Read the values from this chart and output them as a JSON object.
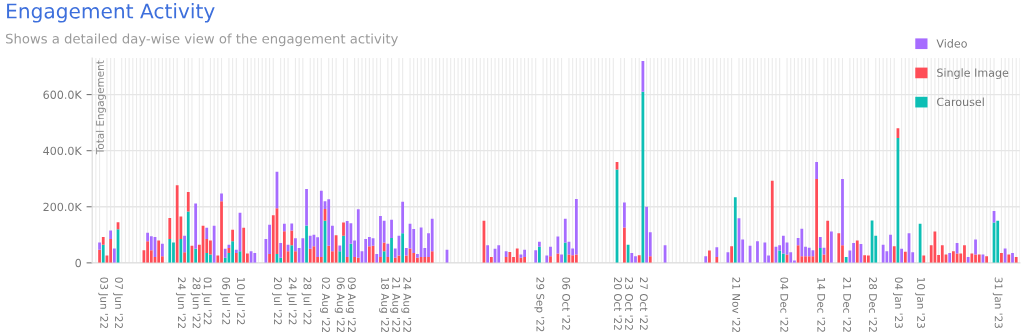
{
  "chart_data": {
    "type": "bar",
    "stacked": true,
    "title": "Engagement Activity",
    "subtitle": "Shows a detailed day-wise view of the engagement activity",
    "ylabel": "Total Engagement",
    "xlim": [
      "2022-05-31",
      "2023-02-06"
    ],
    "ylim": [
      0,
      730000
    ],
    "yticks": [
      0,
      {
        "value": 200000,
        "label": "200.0K"
      },
      {
        "value": 400000,
        "label": "400.0K"
      },
      {
        "value": 600000,
        "label": "600.0K"
      }
    ],
    "xticks": [
      {
        "value": "2022-06-03",
        "label": "03 Jun '22"
      },
      {
        "value": "2022-06-07",
        "label": "07 Jun '22"
      },
      {
        "value": "2022-06-24",
        "label": "24 Jun '22"
      },
      {
        "value": "2022-06-28",
        "label": "28 Jun '22"
      },
      {
        "value": "2022-07-01",
        "label": "01 Jul '22"
      },
      {
        "value": "2022-07-06",
        "label": "06 Jul '22"
      },
      {
        "value": "2022-07-10",
        "label": "10 Jul '22"
      },
      {
        "value": "2022-07-20",
        "label": "20 Jul '22"
      },
      {
        "value": "2022-07-24",
        "label": "24 Jul '22"
      },
      {
        "value": "2022-07-28",
        "label": "28 Jul '22"
      },
      {
        "value": "2022-08-02",
        "label": "02 Aug '22"
      },
      {
        "value": "2022-08-06",
        "label": "06 Aug '22"
      },
      {
        "value": "2022-08-09",
        "label": "09 Aug '22"
      },
      {
        "value": "2022-08-18",
        "label": "18 Aug '22"
      },
      {
        "value": "2022-08-21",
        "label": "21 Aug '22"
      },
      {
        "value": "2022-08-24",
        "label": "24 Aug '22"
      },
      {
        "value": "2022-09-29",
        "label": "29 Sep '22"
      },
      {
        "value": "2022-10-06",
        "label": "06 Oct '22"
      },
      {
        "value": "2022-10-20",
        "label": "20 Oct '22"
      },
      {
        "value": "2022-10-23",
        "label": "23 Oct '22"
      },
      {
        "value": "2022-10-27",
        "label": "27 Oct '22"
      },
      {
        "value": "2022-11-21",
        "label": "21 Nov '22"
      },
      {
        "value": "2022-12-04",
        "label": "04 Dec '22"
      },
      {
        "value": "2022-12-14",
        "label": "14 Dec '22"
      },
      {
        "value": "2022-12-21",
        "label": "21 Dec '22"
      },
      {
        "value": "2022-12-28",
        "label": "28 Dec '22"
      },
      {
        "value": "2023-01-04",
        "label": "04 Jan '23"
      },
      {
        "value": "2023-01-10",
        "label": "10 Jan '23"
      },
      {
        "value": "2023-01-31",
        "label": "31 Jan '23"
      }
    ],
    "grid": true,
    "legend": "top right",
    "x": [
      "2022-06-02",
      "2022-06-03",
      "2022-06-04",
      "2022-06-05",
      "2022-06-06",
      "2022-06-07",
      "2022-06-14",
      "2022-06-15",
      "2022-06-16",
      "2022-06-17",
      "2022-06-18",
      "2022-06-19",
      "2022-06-21",
      "2022-06-22",
      "2022-06-23",
      "2022-06-24",
      "2022-06-25",
      "2022-06-26",
      "2022-06-27",
      "2022-06-28",
      "2022-06-29",
      "2022-06-30",
      "2022-07-01",
      "2022-07-02",
      "2022-07-03",
      "2022-07-04",
      "2022-07-05",
      "2022-07-06",
      "2022-07-07",
      "2022-07-08",
      "2022-07-09",
      "2022-07-10",
      "2022-07-11",
      "2022-07-12",
      "2022-07-13",
      "2022-07-14",
      "2022-07-17",
      "2022-07-18",
      "2022-07-19",
      "2022-07-20",
      "2022-07-21",
      "2022-07-22",
      "2022-07-23",
      "2022-07-24",
      "2022-07-25",
      "2022-07-26",
      "2022-07-27",
      "2022-07-28",
      "2022-07-29",
      "2022-07-30",
      "2022-07-31",
      "2022-08-01",
      "2022-08-02",
      "2022-08-03",
      "2022-08-04",
      "2022-08-05",
      "2022-08-06",
      "2022-08-07",
      "2022-08-08",
      "2022-08-09",
      "2022-08-10",
      "2022-08-11",
      "2022-08-12",
      "2022-08-13",
      "2022-08-14",
      "2022-08-15",
      "2022-08-16",
      "2022-08-17",
      "2022-08-18",
      "2022-08-19",
      "2022-08-20",
      "2022-08-21",
      "2022-08-22",
      "2022-08-23",
      "2022-08-24",
      "2022-08-25",
      "2022-08-26",
      "2022-08-27",
      "2022-08-28",
      "2022-08-29",
      "2022-08-30",
      "2022-08-31",
      "2022-09-04",
      "2022-09-14",
      "2022-09-15",
      "2022-09-16",
      "2022-09-17",
      "2022-09-18",
      "2022-09-20",
      "2022-09-21",
      "2022-09-22",
      "2022-09-23",
      "2022-09-24",
      "2022-09-25",
      "2022-09-28",
      "2022-09-29",
      "2022-10-01",
      "2022-10-02",
      "2022-10-04",
      "2022-10-05",
      "2022-10-06",
      "2022-10-07",
      "2022-10-08",
      "2022-10-09",
      "2022-10-20",
      "2022-10-22",
      "2022-10-23",
      "2022-10-24",
      "2022-10-25",
      "2022-10-26",
      "2022-10-27",
      "2022-10-28",
      "2022-10-29",
      "2022-11-02",
      "2022-11-13",
      "2022-11-14",
      "2022-11-16",
      "2022-11-19",
      "2022-11-20",
      "2022-11-21",
      "2022-11-22",
      "2022-11-23",
      "2022-11-25",
      "2022-11-27",
      "2022-11-29",
      "2022-11-30",
      "2022-12-01",
      "2022-12-02",
      "2022-12-03",
      "2022-12-04",
      "2022-12-05",
      "2022-12-06",
      "2022-12-07",
      "2022-12-08",
      "2022-12-09",
      "2022-12-10",
      "2022-12-11",
      "2022-12-12",
      "2022-12-13",
      "2022-12-14",
      "2022-12-15",
      "2022-12-16",
      "2022-12-17",
      "2022-12-19",
      "2022-12-20",
      "2022-12-21",
      "2022-12-22",
      "2022-12-23",
      "2022-12-24",
      "2022-12-25",
      "2022-12-26",
      "2022-12-27",
      "2022-12-28",
      "2022-12-29",
      "2022-12-31",
      "2023-01-01",
      "2023-01-02",
      "2023-01-03",
      "2023-01-04",
      "2023-01-05",
      "2023-01-06",
      "2023-01-07",
      "2023-01-08",
      "2023-01-10",
      "2023-01-11",
      "2023-01-13",
      "2023-01-14",
      "2023-01-15",
      "2023-01-16",
      "2023-01-17",
      "2023-01-18",
      "2023-01-19",
      "2023-01-20",
      "2023-01-21",
      "2023-01-22",
      "2023-01-23",
      "2023-01-24",
      "2023-01-25",
      "2023-01-26",
      "2023-01-27",
      "2023-01-28",
      "2023-01-30",
      "2023-01-31",
      "2023-02-01",
      "2023-02-02",
      "2023-02-03",
      "2023-02-04",
      "2023-02-05"
    ],
    "series": [
      {
        "name": "Carousel",
        "color": "#0dbfb5",
        "values": [
          null,
          65000,
          null,
          null,
          null,
          120000,
          null,
          null,
          null,
          null,
          null,
          null,
          85000,
          73000,
          null,
          85000,
          null,
          183000,
          null,
          50000,
          null,
          null,
          35000,
          30000,
          null,
          null,
          null,
          18000,
          35000,
          77000,
          null,
          41000,
          null,
          null,
          null,
          null,
          null,
          null,
          null,
          32000,
          18000,
          null,
          null,
          63000,
          null,
          null,
          null,
          133000,
          null,
          null,
          null,
          null,
          150000,
          null,
          null,
          null,
          41000,
          97000,
          null,
          68000,
          null,
          null,
          null,
          null,
          null,
          null,
          null,
          null,
          41000,
          null,
          89000,
          null,
          null,
          106000,
          null,
          null,
          null,
          null,
          null,
          null,
          null,
          null,
          null,
          null,
          null,
          null,
          null,
          null,
          null,
          null,
          null,
          null,
          null,
          null,
          null,
          57000,
          null,
          null,
          null,
          null,
          73000,
          null,
          null,
          null,
          333000,
          null,
          65000,
          null,
          null,
          null,
          610000,
          null,
          null,
          null,
          null,
          null,
          null,
          null,
          null,
          234000,
          null,
          null,
          null,
          null,
          null,
          null,
          null,
          null,
          44000,
          33000,
          null,
          null,
          null,
          null,
          null,
          null,
          null,
          null,
          null,
          53000,
          null,
          null,
          null,
          null,
          null,
          21000,
          null,
          null,
          null,
          null,
          null,
          null,
          151000,
          97000,
          null,
          null,
          null,
          null,
          445000,
          null,
          null,
          null,
          null,
          139000,
          null,
          null,
          null,
          null,
          null,
          null,
          null,
          null,
          null,
          null,
          null,
          null,
          null,
          null,
          null,
          null,
          null,
          144000,
          150000,
          null,
          null,
          null,
          null,
          null
        ]
      },
      {
        "name": "Single Image",
        "color": "#ff4d57",
        "values": [
          47000,
          27000,
          26000,
          85000,
          null,
          25000,
          45000,
          77000,
          45000,
          21000,
          80000,
          24000,
          75000,
          null,
          277000,
          80000,
          38000,
          70000,
          61000,
          null,
          65000,
          132000,
          50000,
          50000,
          null,
          26000,
          220000,
          null,
          18000,
          41000,
          35000,
          null,
          125000,
          33000,
          null,
          null,
          null,
          32000,
          170000,
          163000,
          null,
          113000,
          41000,
          52000,
          41000,
          null,
          null,
          null,
          50000,
          59000,
          21000,
          21000,
          42000,
          61000,
          41000,
          98000,
          null,
          47000,
          21000,
          null,
          21000,
          18000,
          null,
          null,
          59000,
          61000,
          null,
          21000,
          32000,
          21000,
          null,
          18000,
          26000,
          null,
          26000,
          51000,
          35000,
          18000,
          21000,
          21000,
          21000,
          41000,
          null,
          150000,
          null,
          21000,
          null,
          null,
          21000,
          39000,
          21000,
          51000,
          18000,
          21000,
          null,
          null,
          null,
          24000,
          33000,
          null,
          null,
          30000,
          27000,
          30000,
          27000,
          126000,
          null,
          null,
          null,
          27000,
          null,
          null,
          24000,
          null,
          null,
          44000,
          21000,
          null,
          59000,
          null,
          null,
          null,
          null,
          null,
          null,
          null,
          293000,
          null,
          null,
          null,
          30000,
          null,
          null,
          63000,
          24000,
          24000,
          24000,
          24000,
          299000,
          null,
          30000,
          150000,
          null,
          106000,
          63000,
          null,
          null,
          null,
          80000,
          null,
          27000,
          26000,
          null,
          null,
          null,
          null,
          null,
          59000,
          35000,
          null,
          40000,
          null,
          null,
          null,
          26000,
          63000,
          112000,
          28000,
          63000,
          30000,
          null,
          41000,
          33000,
          33000,
          63000,
          null,
          33000,
          30000,
          30000,
          null,
          24000,
          null,
          null,
          35000,
          null,
          30000,
          null,
          21000
        ]
      },
      {
        "name": "Video",
        "color": "#a66cff",
        "values": [
          26000,
          null,
          null,
          30000,
          51000,
          null,
          null,
          30000,
          50000,
          71000,
          null,
          44000,
          null,
          null,
          null,
          null,
          59000,
          null,
          null,
          162000,
          null,
          null,
          40000,
          null,
          132000,
          null,
          27000,
          32000,
          12000,
          null,
          12000,
          138000,
          null,
          null,
          41000,
          35000,
          85000,
          104000,
          null,
          130000,
          53000,
          26000,
          24000,
          25000,
          47000,
          53000,
          88000,
          130000,
          47000,
          41000,
          70000,
          236000,
          28000,
          166000,
          91000,
          null,
          21000,
          null,
          128000,
          73000,
          59000,
          173000,
          41000,
          85000,
          33000,
          27000,
          32000,
          146000,
          77000,
          47000,
          65000,
          33000,
          71000,
          112000,
          27000,
          88000,
          86000,
          14000,
          105000,
          32000,
          85000,
          116000,
          47000,
          null,
          63000,
          null,
          50000,
          63000,
          20000,
          null,
          null,
          null,
          12000,
          26000,
          45000,
          18000,
          26000,
          33000,
          61000,
          30000,
          84000,
          45000,
          24000,
          198000,
          null,
          89000,
          null,
          35000,
          24000,
          null,
          110000,
          200000,
          85000,
          63000,
          24000,
          null,
          35000,
          38000,
          null,
          null,
          159000,
          83000,
          61000,
          77000,
          73000,
          26000,
          null,
          57000,
          19000,
          64000,
          43000,
          38000,
          8000,
          26000,
          98000,
          33000,
          30000,
          21000,
          61000,
          39000,
          24000,
          null,
          112000,
          null,
          236000,
          null,
          44000,
          71000,
          null,
          67000,
          null,
          null,
          null,
          null,
          65000,
          41000,
          100000,
          null,
          null,
          50000,
          null,
          106000,
          38000,
          null,
          null,
          null,
          null,
          null,
          null,
          null,
          35000,
          null,
          38000,
          null,
          null,
          21000,
          null,
          53000,
          null,
          30000,
          null,
          41000,
          null,
          null,
          51000,
          null,
          35000,
          null
        ]
      }
    ]
  }
}
